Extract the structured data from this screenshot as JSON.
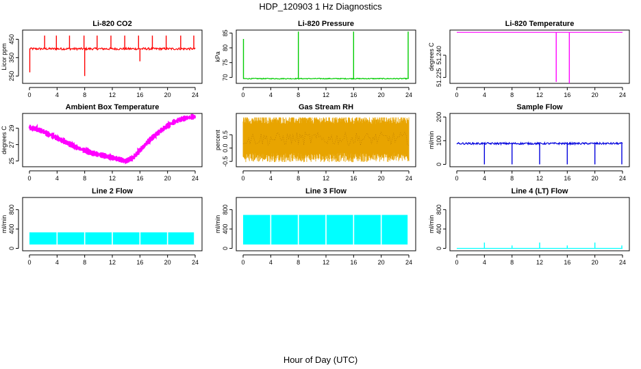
{
  "figure": {
    "title": "HDP_120903  1 Hz Diagnostics",
    "xlabel": "Hour of Day (UTC)"
  },
  "chart_data": [
    {
      "id": "co2",
      "type": "line",
      "title": "Li-820 CO2",
      "ylabel": "Licor ppm",
      "color": "#ff0000",
      "xlim": [
        0,
        24
      ],
      "ylim": [
        210,
        500
      ],
      "xticks": [
        0,
        4,
        8,
        12,
        16,
        20,
        24
      ],
      "yticks": [
        250,
        350,
        450
      ],
      "ytick_labels": [
        "250",
        "350",
        "450"
      ],
      "series": [
        {
          "baseline": 398,
          "noise": 6,
          "x": [
            0.05,
            2.2,
            3.9,
            5.8,
            7.9,
            8.0,
            9.8,
            11.8,
            13.8,
            15.8,
            16.0,
            17.8,
            19.8,
            21.9,
            23.8
          ],
          "y": [
            270,
            470,
            470,
            470,
            470,
            250,
            470,
            470,
            470,
            470,
            330,
            470,
            470,
            470,
            470
          ]
        }
      ]
    },
    {
      "id": "pressure",
      "type": "line",
      "title": "Li-820 Pressure",
      "ylabel": "kPa",
      "color": "#00cc00",
      "xlim": [
        0,
        24
      ],
      "ylim": [
        68,
        86
      ],
      "xticks": [
        0,
        4,
        8,
        12,
        16,
        20,
        24
      ],
      "yticks": [
        70,
        75,
        80,
        85
      ],
      "ytick_labels": [
        "70",
        "75",
        "80",
        "85"
      ],
      "series": [
        {
          "baseline": 69.6,
          "noise": 0.15,
          "x": [
            0.05,
            8.0,
            16.0,
            23.9
          ],
          "y": [
            83,
            85.5,
            85.5,
            85.5
          ]
        }
      ]
    },
    {
      "id": "temperature",
      "type": "line",
      "title": "Li-820 Temperature",
      "ylabel": "degrees C",
      "color": "#ff00ff",
      "xlim": [
        0,
        24
      ],
      "ylim": [
        51.221,
        51.257
      ],
      "xticks": [
        0,
        4,
        8,
        12,
        16,
        20,
        24
      ],
      "yticks": [
        51.225,
        51.24
      ],
      "ytick_labels": [
        "51.225",
        "51.240"
      ],
      "series": [
        {
          "baseline": 51.2555,
          "noise": 0,
          "x": [
            14.4,
            16.3
          ],
          "y": [
            51.222,
            51.221
          ]
        }
      ]
    },
    {
      "id": "ambient",
      "type": "line",
      "title": "Ambient Box Temperature",
      "ylabel": "degrees C",
      "color": "#ff00ff",
      "xlim": [
        0,
        24
      ],
      "ylim": [
        24.3,
        30.8
      ],
      "xticks": [
        0,
        4,
        8,
        12,
        16,
        20,
        24
      ],
      "yticks": [
        25,
        27,
        29
      ],
      "ytick_labels": [
        "25",
        "27",
        "29"
      ],
      "series": [
        {
          "band": 0.35,
          "x": [
            0,
            1,
            2,
            3,
            4,
            5,
            6,
            7,
            8,
            9,
            10,
            11,
            12,
            13,
            14,
            15,
            16,
            17,
            18,
            19,
            20,
            21,
            22,
            23,
            24
          ],
          "y": [
            29.1,
            28.9,
            28.6,
            28.2,
            27.8,
            27.4,
            27.0,
            26.6,
            26.3,
            26.0,
            25.8,
            25.6,
            25.4,
            25.2,
            25.0,
            25.4,
            26.3,
            27.2,
            28.0,
            28.7,
            29.3,
            29.8,
            30.1,
            30.3,
            30.4
          ]
        }
      ]
    },
    {
      "id": "rh",
      "type": "line",
      "title": "Gas Stream RH",
      "ylabel": "percent",
      "color": "#e8a400",
      "xlim": [
        0,
        24
      ],
      "ylim": [
        -0.7,
        1.3
      ],
      "xticks": [
        0,
        4,
        8,
        12,
        16,
        20,
        24
      ],
      "yticks": [
        -0.5,
        0.0,
        0.5
      ],
      "ytick_labels": [
        "-0.5",
        "0.0",
        "0.5"
      ],
      "series": [
        {
          "lower": -0.35,
          "upper": 1.05,
          "center": 0.35,
          "noise_min": -0.55,
          "noise_max": 1.15
        }
      ]
    },
    {
      "id": "sample_flow",
      "type": "line",
      "title": "Sample Flow",
      "ylabel": "ml/min",
      "color": "#0000dd",
      "xlim": [
        0,
        24
      ],
      "ylim": [
        -10,
        215
      ],
      "xticks": [
        0,
        4,
        8,
        12,
        16,
        20,
        24
      ],
      "yticks": [
        0,
        100,
        200
      ],
      "ytick_labels": [
        "0",
        "100",
        "200"
      ],
      "series": [
        {
          "baseline": 88,
          "noise": 4,
          "x": [
            4.0,
            8.0,
            12.0,
            16.0,
            20.0,
            23.9
          ],
          "y": [
            0,
            0,
            0,
            0,
            0,
            0
          ]
        }
      ]
    },
    {
      "id": "line2",
      "type": "area",
      "title": "Line 2 Flow",
      "ylabel": "ml/min",
      "color": "#00ffff",
      "xlim": [
        0,
        24
      ],
      "ylim": [
        -50,
        1050
      ],
      "xticks": [
        0,
        4,
        8,
        12,
        16,
        20,
        24
      ],
      "yticks": [
        0,
        400,
        800
      ],
      "ytick_labels": [
        "0",
        "400",
        "800"
      ],
      "series": [
        {
          "lower": 80,
          "upper": 330,
          "gaps": [
            4.0,
            8.0,
            12.0,
            16.0,
            20.0,
            23.9
          ]
        }
      ]
    },
    {
      "id": "line3",
      "type": "area",
      "title": "Line 3 Flow",
      "ylabel": "ml/min",
      "color": "#00ffff",
      "xlim": [
        0,
        24
      ],
      "ylim": [
        -50,
        1050
      ],
      "xticks": [
        0,
        4,
        8,
        12,
        16,
        20,
        24
      ],
      "yticks": [
        0,
        400,
        800
      ],
      "ytick_labels": [
        "0",
        "400",
        "800"
      ],
      "series": [
        {
          "lower": 80,
          "upper": 690,
          "gaps": [
            4.0,
            8.0,
            12.0,
            16.0,
            20.0,
            23.9
          ]
        }
      ]
    },
    {
      "id": "line4",
      "type": "line",
      "title": "Line 4 (LT) Flow",
      "ylabel": "ml/min",
      "color": "#00ffff",
      "xlim": [
        0,
        24
      ],
      "ylim": [
        -50,
        1050
      ],
      "xticks": [
        0,
        4,
        8,
        12,
        16,
        20,
        24
      ],
      "yticks": [
        0,
        400,
        800
      ],
      "ytick_labels": [
        "0",
        "400",
        "800"
      ],
      "series": [
        {
          "baseline": 0,
          "x": [
            4.0,
            8.0,
            12.0,
            16.0,
            20.0,
            23.9
          ],
          "y": [
            120,
            60,
            120,
            60,
            120,
            60
          ]
        }
      ]
    }
  ]
}
